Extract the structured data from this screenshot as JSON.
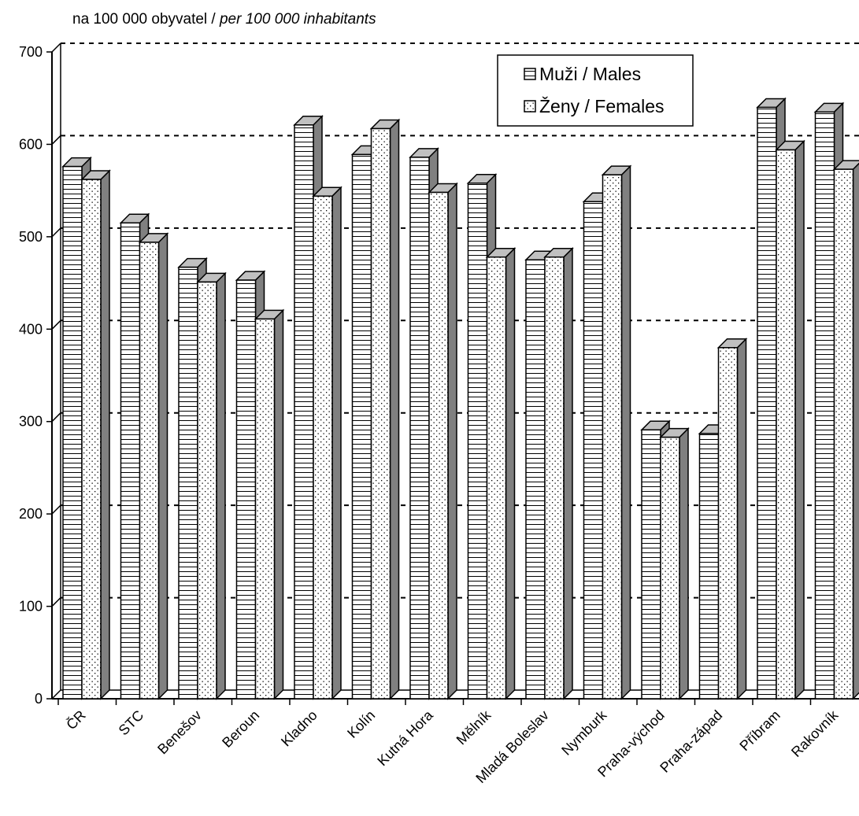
{
  "chart_data": {
    "type": "bar",
    "unit_label": {
      "cz": "na 100 000 obyvatel / ",
      "en": "per 100 000 inhabitants"
    },
    "categories": [
      "ČR",
      "STC",
      "Benešov",
      "Beroun",
      "Kladno",
      "Kolín",
      "Kutná Hora",
      "Mělník",
      "Mladá Boleslav",
      "Nymburk",
      "Praha-východ",
      "Praha-západ",
      "Příbram",
      "Rakovník"
    ],
    "series": [
      {
        "name": "Muži / Males",
        "pattern": "horizontal-stripes",
        "values": [
          576,
          515,
          467,
          453,
          621,
          589,
          586,
          558,
          475,
          538,
          291,
          287,
          640,
          635
        ]
      },
      {
        "name": "Ženy / Females",
        "pattern": "dots",
        "values": [
          562,
          494,
          451,
          411,
          544,
          617,
          548,
          478,
          478,
          567,
          283,
          380,
          594,
          573
        ]
      }
    ],
    "ylim": [
      0,
      700
    ],
    "yticks": [
      0,
      100,
      200,
      300,
      400,
      500,
      600,
      700
    ],
    "grid": "dotted horizontal",
    "legend_position": "top-right",
    "colors": {
      "bar_face": "#ffffff",
      "bar_side": "#808080",
      "bar_top": "#c0c0c0",
      "stroke": "#000000"
    }
  }
}
